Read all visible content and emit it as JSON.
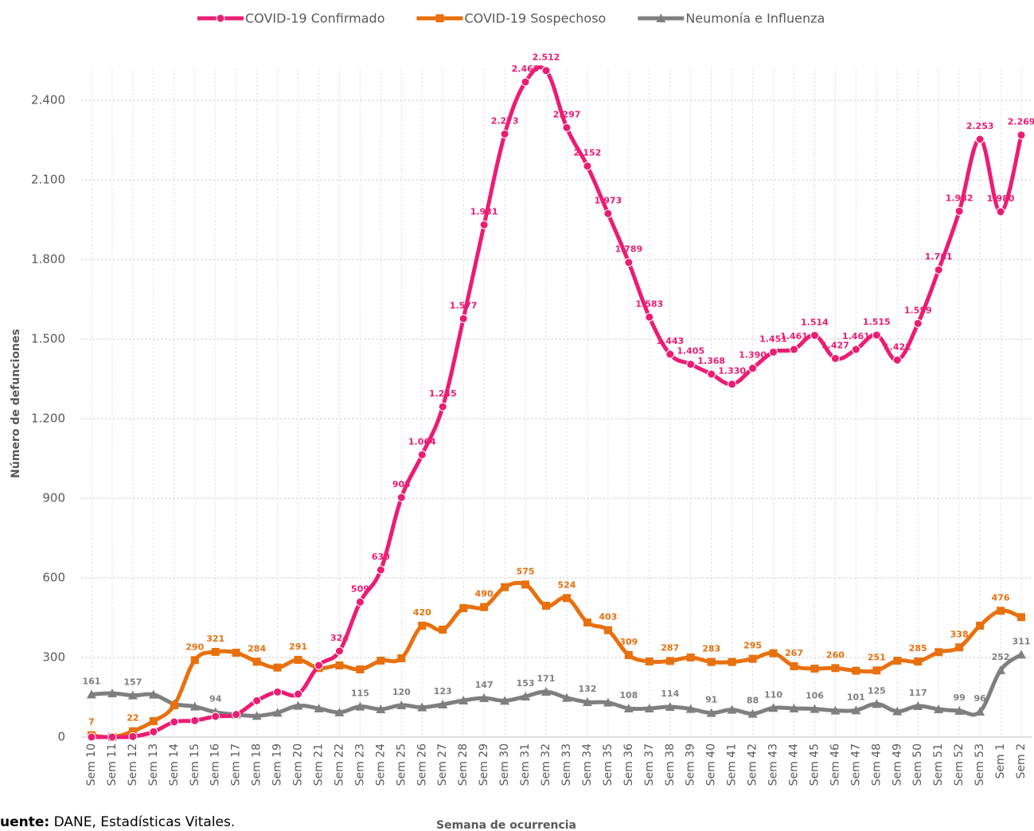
{
  "chart_data": {
    "type": "line",
    "x_label": "Semana de ocurrencia",
    "y_label": "Número de defunciones",
    "source_label": "uente:",
    "source_text": "DANE, Estadísticas Vitales.",
    "categories": [
      "Sem 10",
      "Sem 11",
      "Sem 12",
      "Sem 13",
      "Sem 14",
      "Sem 15",
      "Sem 16",
      "Sem 17",
      "Sem 18",
      "Sem 19",
      "Sem 20",
      "Sem 21",
      "Sem 22",
      "Sem 23",
      "Sem 24",
      "Sem 25",
      "Sem 26",
      "Sem 27",
      "Sem 28",
      "Sem 29",
      "Sem 30",
      "Sem 31",
      "Sem 32",
      "Sem 33",
      "Sem 34",
      "Sem 35",
      "Sem 36",
      "Sem 37",
      "Sem 38",
      "Sem 39",
      "Sem 40",
      "Sem 41",
      "Sem 42",
      "Sem 43",
      "Sem 44",
      "Sem 45",
      "Sem 46",
      "Sem 47",
      "Sem 48",
      "Sem 49",
      "Sem 50",
      "Sem 51",
      "Sem 52",
      "Sem 53",
      "Sem 1",
      "Sem 2"
    ],
    "ylim": [
      0,
      2520
    ],
    "yticks": [
      0,
      300,
      600,
      900,
      {
        "value": 1200,
        "label": "1.200"
      },
      {
        "value": 1500,
        "label": "1.500"
      },
      {
        "value": 1800,
        "label": "1.800"
      },
      {
        "value": 2100,
        "label": "2.100"
      },
      {
        "value": 2400,
        "label": "2.400"
      }
    ],
    "grid": true,
    "legend": "top",
    "series": [
      {
        "name": "COVID-19 Confirmado",
        "color": "#ec1c73",
        "marker": "circle",
        "values": [
          0,
          0,
          2,
          20,
          57,
          62,
          78,
          85,
          137,
          170,
          162,
          270,
          324,
          509,
          630,
          903,
          1064,
          1245,
          1577,
          1931,
          2273,
          2469,
          2512,
          2297,
          2152,
          1973,
          1789,
          1583,
          1443,
          1405,
          1368,
          1330,
          1390,
          1451,
          1461,
          1514,
          1427,
          1461,
          1515,
          1421,
          1559,
          1761,
          1982,
          2253,
          1980,
          2269
        ],
        "value_labels": [
          null,
          null,
          null,
          null,
          null,
          null,
          null,
          null,
          null,
          null,
          null,
          null,
          "324",
          "509",
          "630",
          "903",
          "1.064",
          "1.245",
          "1.577",
          "1.931",
          "2.273",
          "2.469",
          "2.512",
          "2.297",
          "2.152",
          "1.973",
          "1.789",
          "1.583",
          "1.443",
          "1.405",
          "1.368",
          "1.330",
          "1.390",
          "1.451",
          "1.461",
          "1.514",
          "1.427",
          "1.461",
          "1.515",
          "1.421",
          "1.559",
          "1.761",
          "1.982",
          "2.253",
          "1.980",
          "2.269"
        ]
      },
      {
        "name": "COVID-19 Sospechoso",
        "color": "#e8700e",
        "marker": "square",
        "values": [
          7,
          0,
          22,
          60,
          120,
          290,
          321,
          318,
          284,
          262,
          291,
          260,
          270,
          255,
          288,
          297,
          420,
          405,
          486,
          490,
          565,
          575,
          495,
          524,
          432,
          403,
          309,
          285,
          287,
          300,
          283,
          283,
          295,
          316,
          267,
          258,
          260,
          250,
          251,
          288,
          285,
          320,
          338,
          420,
          476,
          452
        ],
        "value_labels": [
          "7",
          null,
          "22",
          null,
          null,
          "290",
          "321",
          null,
          "284",
          null,
          "291",
          null,
          null,
          null,
          null,
          null,
          "420",
          null,
          null,
          "490",
          null,
          "575",
          null,
          "524",
          null,
          "403",
          "309",
          null,
          "287",
          null,
          "283",
          null,
          "295",
          null,
          "267",
          null,
          "260",
          null,
          "251",
          null,
          "285",
          null,
          "338",
          null,
          "476",
          null
        ]
      },
      {
        "name": "Neumonía e Influenza",
        "color": "#7f7f7f",
        "marker": "triangle",
        "values": [
          161,
          165,
          157,
          160,
          125,
          115,
          94,
          85,
          80,
          92,
          118,
          108,
          93,
          115,
          105,
          120,
          112,
          123,
          138,
          147,
          137,
          153,
          171,
          148,
          132,
          130,
          108,
          108,
          114,
          106,
          91,
          103,
          88,
          110,
          108,
          106,
          100,
          101,
          125,
          97,
          117,
          105,
          99,
          96,
          252,
          311
        ],
        "value_labels": [
          "161",
          null,
          "157",
          null,
          null,
          null,
          "94",
          null,
          null,
          null,
          null,
          null,
          null,
          "115",
          null,
          "120",
          null,
          "123",
          null,
          "147",
          null,
          "153",
          "171",
          null,
          "132",
          null,
          "108",
          null,
          "114",
          null,
          "91",
          null,
          "88",
          "110",
          null,
          "106",
          null,
          "101",
          "125",
          null,
          "117",
          null,
          "99",
          "96",
          "252",
          "311"
        ]
      }
    ]
  }
}
